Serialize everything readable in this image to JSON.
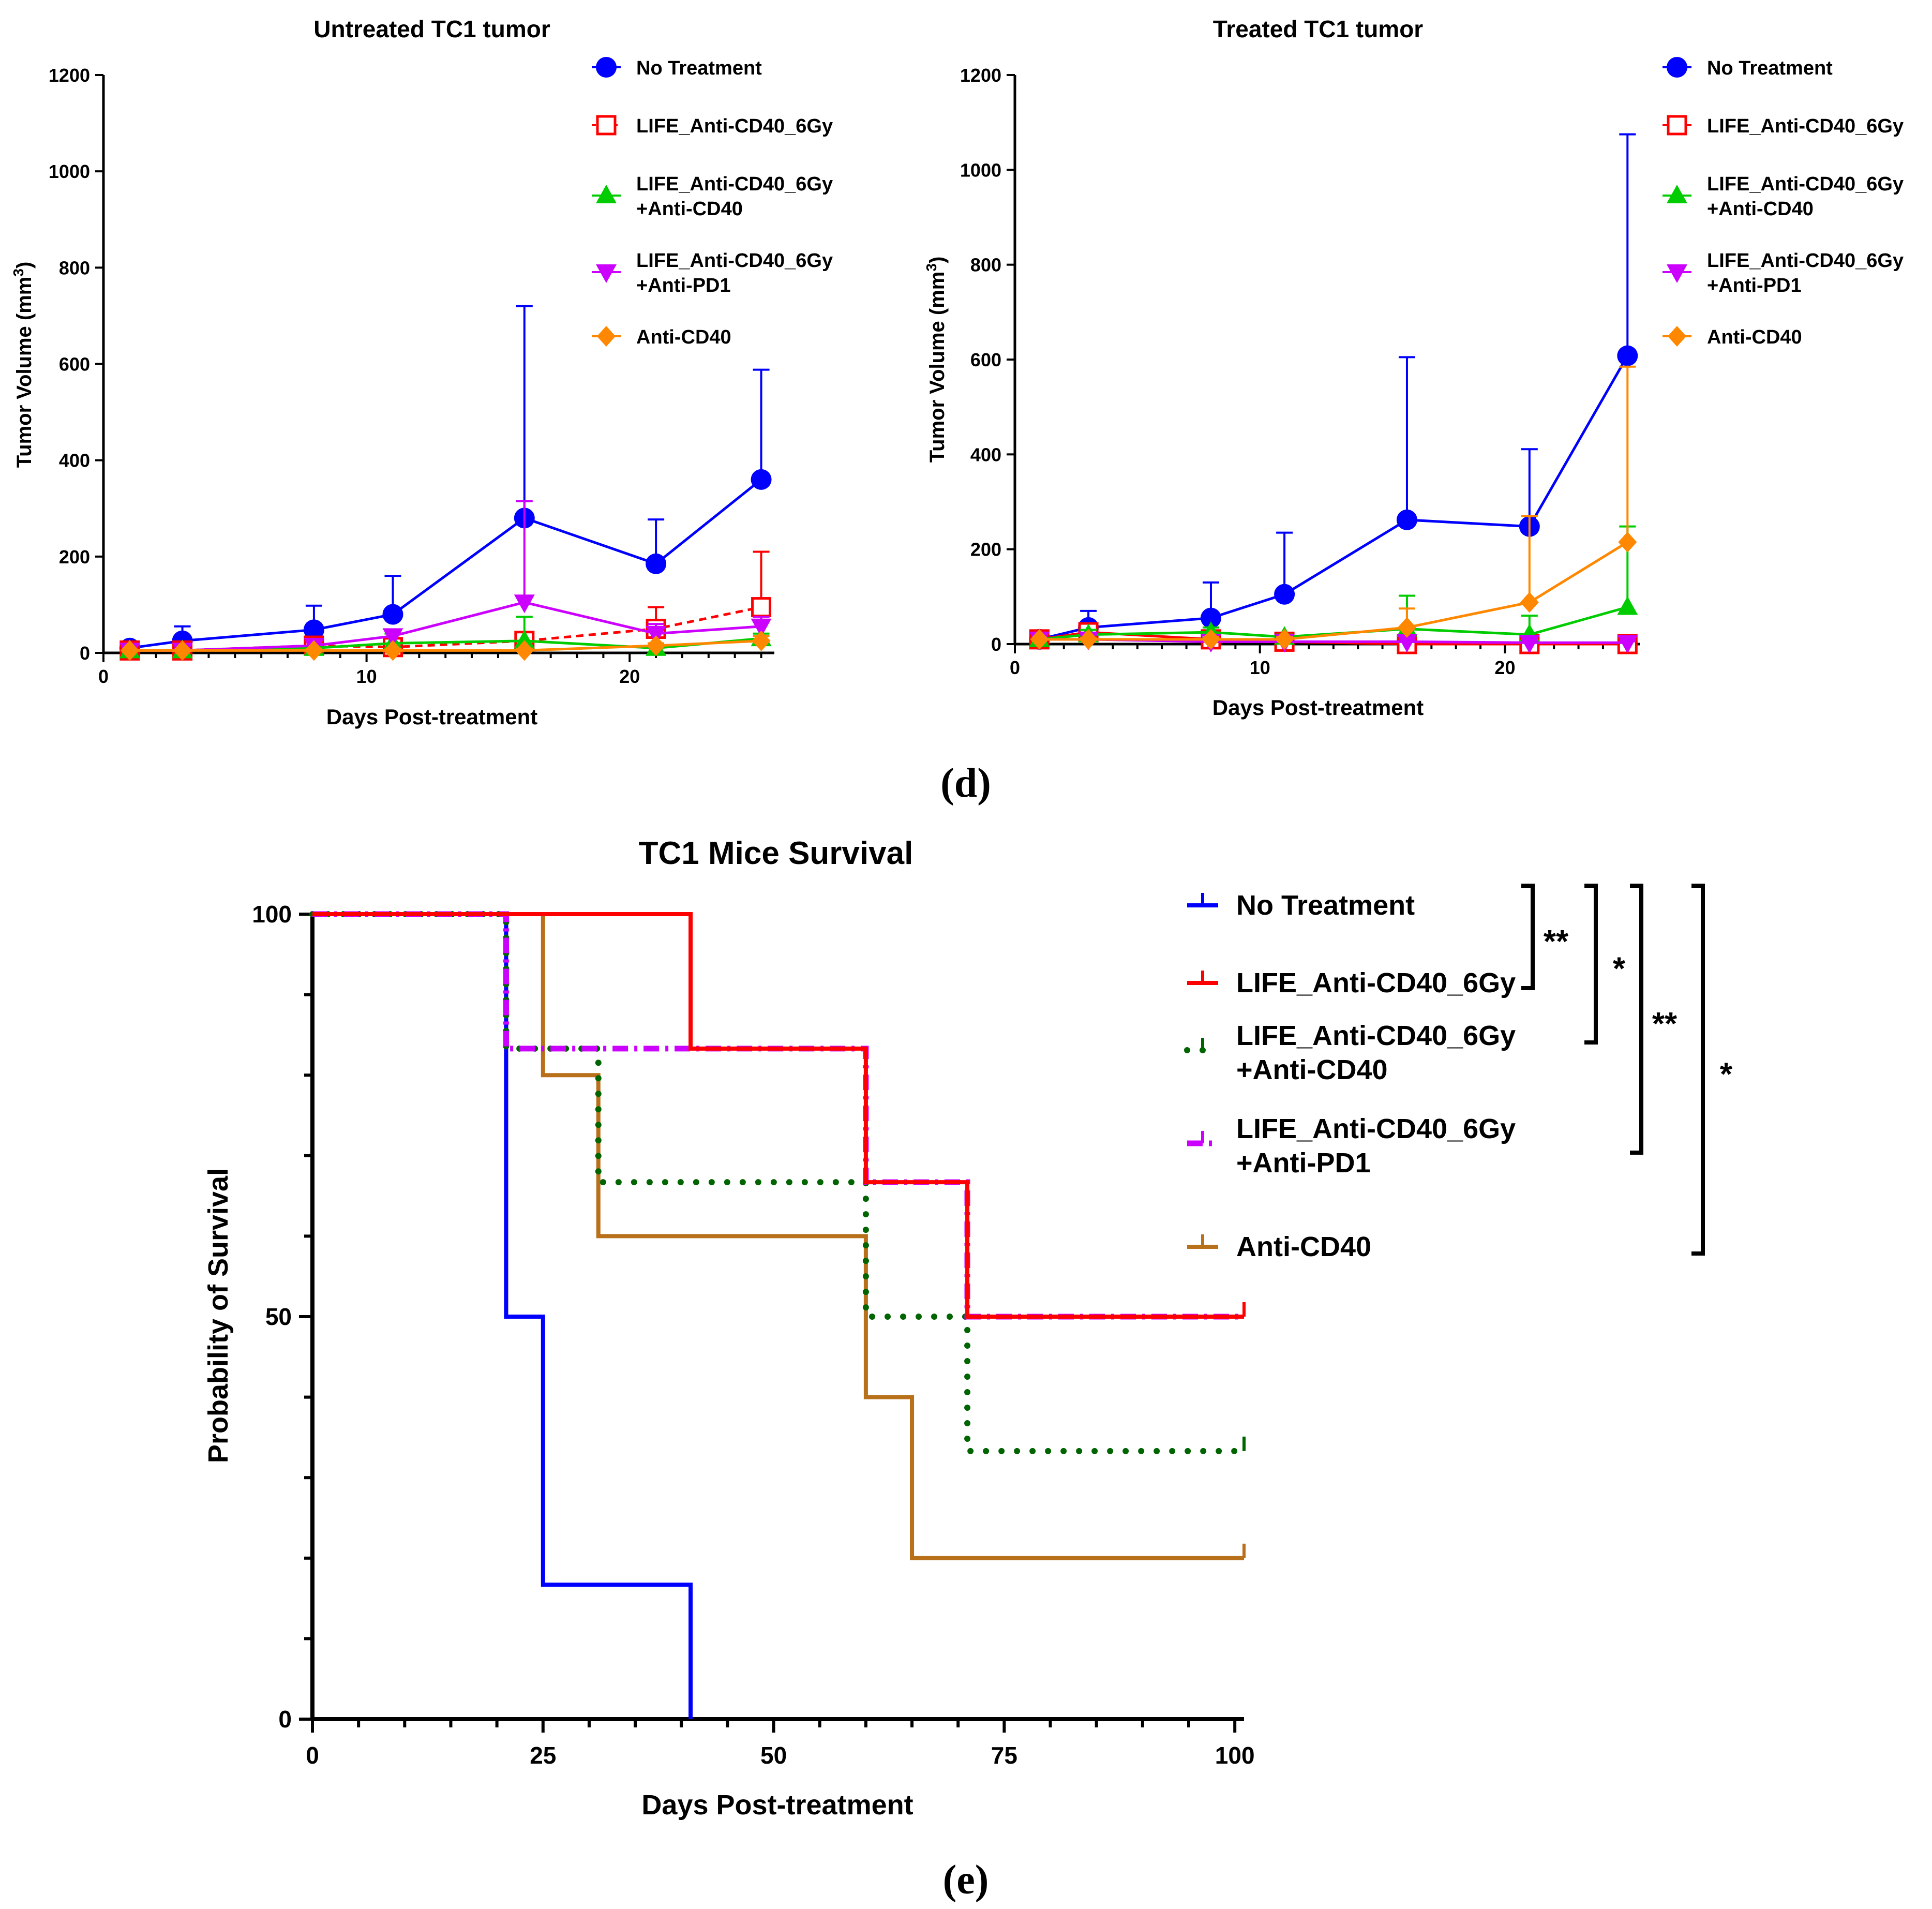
{
  "panel_labels": [
    "(d)",
    "(e)"
  ],
  "chart_data": [
    {
      "id": "untreated",
      "type": "line",
      "title": "Untreated TC1 tumor",
      "xlabel": "Days Post-treatment",
      "ylabel": "Tumor Volume (mm",
      "ylabel_sup": "3",
      "ylabel_close": ")",
      "xlim": [
        0,
        25.5
      ],
      "ylim": [
        0,
        1200
      ],
      "xticks": [
        0,
        10,
        20
      ],
      "xtick_labels": [
        "0",
        "10",
        "20"
      ],
      "yticks": [
        0,
        200,
        400,
        600,
        800,
        1000,
        1200
      ],
      "ytick_labels": [
        "0",
        "200",
        "400",
        "600",
        "800",
        "1000",
        "1200"
      ],
      "x": [
        1,
        3,
        8,
        11,
        16,
        21,
        25
      ],
      "legend_position": "top-right",
      "series": [
        {
          "name": "No Treatment",
          "color": "#0000ff",
          "marker": "circle",
          "dash": "solid",
          "values": [
            10,
            25,
            48,
            80,
            280,
            185,
            360
          ],
          "errors": [
            0,
            30,
            50,
            80,
            440,
            92,
            228
          ]
        },
        {
          "name": "LIFE_Anti-CD40_6Gy",
          "color": "#ff0000",
          "marker": "square-open",
          "dash": "dashed",
          "values": [
            5,
            5,
            15,
            12,
            25,
            50,
            95
          ],
          "errors": [
            0,
            0,
            5,
            5,
            10,
            45,
            115
          ]
        },
        {
          "name": "LIFE_Anti-CD40_6Gy\n+Anti-CD40",
          "color": "#00cc00",
          "marker": "triangle-up",
          "dash": "solid",
          "values": [
            5,
            5,
            10,
            20,
            25,
            10,
            30
          ],
          "errors": [
            0,
            3,
            5,
            20,
            50,
            5,
            10
          ]
        },
        {
          "name": "LIFE_Anti-CD40_6Gy\n+Anti-PD1",
          "color": "#cc00ff",
          "marker": "triangle-down",
          "dash": "solid",
          "values": [
            5,
            5,
            15,
            35,
            105,
            40,
            55
          ],
          "errors": [
            0,
            3,
            10,
            10,
            210,
            20,
            20
          ]
        },
        {
          "name": "Anti-CD40",
          "color": "#ff8800",
          "marker": "diamond",
          "dash": "solid",
          "values": [
            5,
            5,
            5,
            5,
            5,
            15,
            25
          ],
          "errors": [
            0,
            0,
            3,
            3,
            3,
            5,
            10
          ]
        }
      ]
    },
    {
      "id": "treated",
      "type": "line",
      "title": "Treated TC1 tumor",
      "xlabel": "Days Post-treatment",
      "ylabel": "Tumor Volume (mm",
      "ylabel_sup": "3",
      "ylabel_close": ")",
      "xlim": [
        0,
        25.5
      ],
      "ylim": [
        0,
        1200
      ],
      "xticks": [
        0,
        10,
        20
      ],
      "xtick_labels": [
        "0",
        "10",
        "20"
      ],
      "yticks": [
        0,
        200,
        400,
        600,
        800,
        1000,
        1200
      ],
      "ytick_labels": [
        "0",
        "200",
        "400",
        "600",
        "800",
        "1000",
        "1200"
      ],
      "x": [
        1,
        3,
        8,
        11,
        16,
        21,
        25
      ],
      "legend_position": "top-right",
      "series": [
        {
          "name": "No Treatment",
          "color": "#0000ff",
          "marker": "circle",
          "dash": "solid",
          "values": [
            10,
            35,
            55,
            105,
            262,
            248,
            608
          ],
          "errors": [
            0,
            35,
            75,
            130,
            343,
            163,
            467
          ]
        },
        {
          "name": "LIFE_Anti-CD40_6Gy",
          "color": "#ff0000",
          "marker": "square-open",
          "dash": "solid",
          "values": [
            10,
            25,
            10,
            5,
            0,
            0,
            0
          ],
          "errors": [
            0,
            5,
            5,
            3,
            3,
            3,
            3
          ]
        },
        {
          "name": "LIFE_Anti-CD40_6Gy\n+Anti-CD40",
          "color": "#00cc00",
          "marker": "triangle-up",
          "dash": "solid",
          "values": [
            10,
            20,
            25,
            15,
            32,
            20,
            78
          ],
          "errors": [
            0,
            10,
            10,
            5,
            70,
            40,
            170
          ]
        },
        {
          "name": "LIFE_Anti-CD40_6Gy\n+Anti-PD1",
          "color": "#cc00ff",
          "marker": "triangle-down",
          "dash": "solid",
          "values": [
            10,
            10,
            5,
            5,
            5,
            3,
            3
          ],
          "errors": [
            0,
            3,
            3,
            3,
            3,
            3,
            3
          ]
        },
        {
          "name": "Anti-CD40",
          "color": "#ff8800",
          "marker": "diamond",
          "dash": "solid",
          "values": [
            10,
            10,
            10,
            10,
            35,
            88,
            215
          ],
          "errors": [
            0,
            3,
            5,
            5,
            40,
            182,
            370
          ]
        }
      ]
    },
    {
      "id": "survival",
      "type": "line",
      "step": true,
      "title": "TC1 Mice Survival",
      "xlabel": "Days Post-treatment",
      "ylabel": "Probability of Survival",
      "xlim": [
        0,
        101
      ],
      "ylim": [
        0,
        100
      ],
      "xticks": [
        0,
        25,
        50,
        75,
        100
      ],
      "xtick_labels": [
        "0",
        "25",
        "50",
        "75",
        "100"
      ],
      "yticks": [
        0,
        50,
        100
      ],
      "ytick_labels": [
        "0",
        "50",
        "100"
      ],
      "legend_position": "right",
      "series": [
        {
          "name": "No Treatment",
          "color": "#0000ff",
          "dash": "solid",
          "x": [
            0,
            21,
            25,
            41
          ],
          "values": [
            100,
            50,
            16.7,
            0
          ]
        },
        {
          "name": "LIFE_Anti-CD40_6Gy",
          "color": "#ff0000",
          "dash": "solid",
          "x": [
            0,
            41,
            60,
            71,
            101
          ],
          "values": [
            100,
            83.3,
            66.7,
            50,
            50
          ]
        },
        {
          "name": "LIFE_Anti-CD40_6Gy\n+Anti-CD40",
          "color": "#006400",
          "dash": "dotted",
          "x": [
            0,
            21,
            31,
            60,
            71,
            101
          ],
          "values": [
            100,
            83.3,
            66.7,
            50,
            33.3,
            33.3
          ]
        },
        {
          "name": "LIFE_Anti-CD40_6Gy\n+Anti-PD1",
          "color": "#cc00ff",
          "dash": "dashdot",
          "x": [
            0,
            21,
            60,
            71,
            101
          ],
          "values": [
            100,
            83.3,
            66.7,
            50,
            50
          ]
        },
        {
          "name": "Anti-CD40",
          "color": "#b8711a",
          "dash": "solid",
          "x": [
            0,
            25,
            31,
            60,
            65,
            101
          ],
          "values": [
            100,
            80,
            60,
            40,
            20,
            20
          ]
        }
      ],
      "significance": [
        {
          "label": "**",
          "from": 0,
          "to": 1
        },
        {
          "label": "*",
          "from": 0,
          "to": 2
        },
        {
          "label": "**",
          "from": 0,
          "to": 3
        },
        {
          "label": "*",
          "from": 0,
          "to": 4
        }
      ]
    }
  ]
}
